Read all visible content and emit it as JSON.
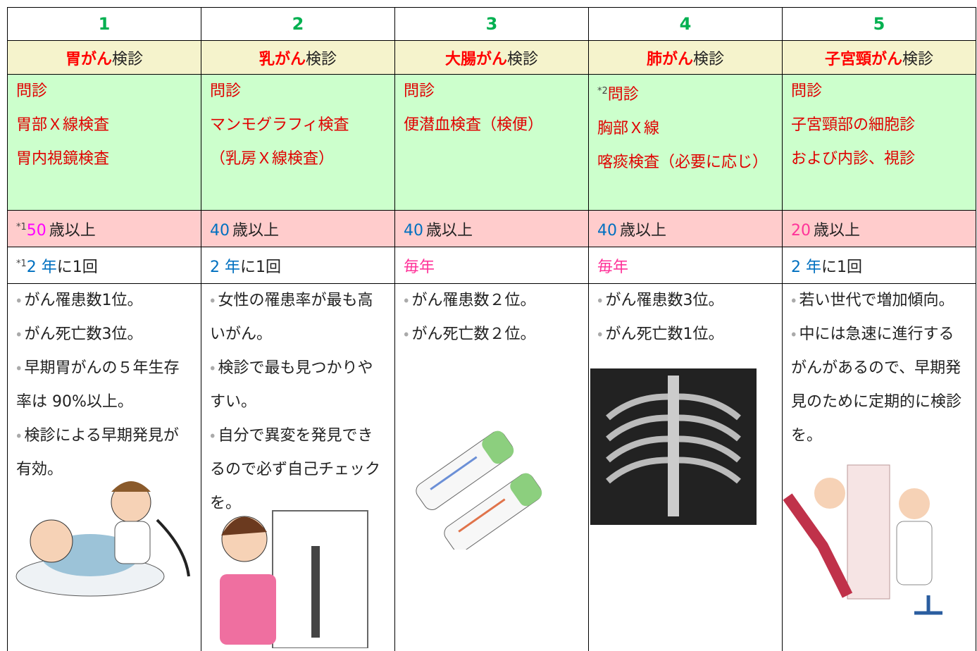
{
  "bullet": "・",
  "columns": [
    {
      "number": "1",
      "name_highlight": "胃がん",
      "name_suffix": "検診",
      "exams": [
        "問診",
        "胃部Ｘ線検査",
        "胃内視鏡検査"
      ],
      "age_note": "*1",
      "age_value": "50",
      "age_color": "#ff00ff",
      "age_suffix": "歳以上",
      "freq_note": "*1",
      "freq_value": "2 年",
      "freq_color": "#0070c0",
      "freq_suffix": "に1回",
      "notes": [
        "がん罹患数1位。",
        "がん死亡数3位。",
        "早期胃がんの５年生存率は 90%以上。",
        "検診による早期発見が有効。"
      ]
    },
    {
      "number": "2",
      "name_highlight": "乳がん",
      "name_suffix": "検診",
      "exams": [
        "問診",
        "マンモグラフィ検査",
        "（乳房Ｘ線検査）"
      ],
      "age_value": "40",
      "age_color": "#0070c0",
      "age_suffix": "歳以上",
      "freq_value": "2 年",
      "freq_color": "#0070c0",
      "freq_suffix": "に1回",
      "notes": [
        "女性の罹患率が最も高いがん。",
        "検診で最も見つかりやすい。",
        "自分で異変を発見できるので必ず自己チェックを。"
      ]
    },
    {
      "number": "3",
      "name_highlight": "大腸がん",
      "name_suffix": "検診",
      "exams": [
        "問診",
        "便潜血検査（検便）"
      ],
      "age_value": "40",
      "age_color": "#0070c0",
      "age_suffix": "歳以上",
      "freq_value": "毎年",
      "freq_color": "#ff3399",
      "notes": [
        "がん罹患数２位。",
        "がん死亡数２位。"
      ]
    },
    {
      "number": "4",
      "name_highlight": "肺がん",
      "name_suffix": "検診",
      "exam_note": "*2",
      "exams": [
        "問診",
        "胸部Ｘ線",
        "喀痰検査（必要に応じ）"
      ],
      "age_value": "40",
      "age_color": "#0070c0",
      "age_suffix": "歳以上",
      "freq_value": "毎年",
      "freq_color": "#ff3399",
      "notes": [
        "がん罹患数3位。",
        "がん死亡数1位。"
      ]
    },
    {
      "number": "5",
      "name_highlight": "子宮頸がん",
      "name_suffix": "検診",
      "exams": [
        "問診",
        "子宮頸部の細胞診",
        "および内診、視診"
      ],
      "age_value": "20",
      "age_color": "#ff3399",
      "age_suffix": "歳以上",
      "freq_value": "2 年",
      "freq_color": "#0070c0",
      "freq_suffix": "に1回",
      "notes": [
        "若い世代で増加傾向。",
        "中には急速に進行するがんがあるので、早期発見のために定期的に検診を。"
      ]
    }
  ]
}
